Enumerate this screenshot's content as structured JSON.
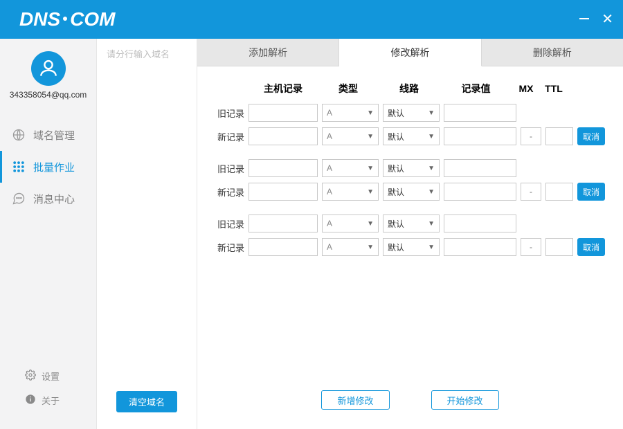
{
  "brand": {
    "text_a": "DNS",
    "text_b": "COM"
  },
  "colors": {
    "primary": "#1296db",
    "sidebar_bg": "#f3f3f4",
    "tab_bg": "#e7e7e7",
    "border": "#c8c8c8"
  },
  "user": {
    "email": "343358054@qq.com"
  },
  "nav": {
    "domain": "域名管理",
    "batch": "批量作业",
    "message": "消息中心"
  },
  "sidebar_bottom": {
    "settings": "设置",
    "about": "关于"
  },
  "domain_panel": {
    "placeholder": "请分行输入域名",
    "clear_btn": "清空域名"
  },
  "tabs": {
    "add": "添加解析",
    "modify": "修改解析",
    "delete": "删除解析"
  },
  "headers": {
    "host": "主机记录",
    "type": "类型",
    "line": "线路",
    "value": "记录值",
    "mx": "MX",
    "ttl": "TTL"
  },
  "row_labels": {
    "old": "旧记录",
    "new": "新记录"
  },
  "defaults": {
    "type": "A",
    "line": "默认",
    "mx_placeholder": "-"
  },
  "buttons": {
    "cancel": "取消",
    "add_modify": "新增修改",
    "start_modify": "开始修改"
  },
  "groups_count": 3
}
